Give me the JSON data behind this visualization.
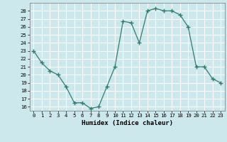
{
  "x": [
    0,
    1,
    2,
    3,
    4,
    5,
    6,
    7,
    8,
    9,
    10,
    11,
    12,
    13,
    14,
    15,
    16,
    17,
    18,
    19,
    20,
    21,
    22,
    23
  ],
  "y": [
    23,
    21.5,
    20.5,
    20,
    18.5,
    16.5,
    16.5,
    15.8,
    16,
    18.5,
    21,
    26.7,
    26.5,
    24,
    28,
    28.3,
    28,
    28,
    27.5,
    26,
    21,
    21,
    19.5,
    19
  ],
  "line_color": "#2e7d6e",
  "marker_color": "#2e7d6e",
  "bg_color": "#cce8ec",
  "grid_color": "#ffffff",
  "xlabel": "Humidex (Indice chaleur)",
  "xlim": [
    -0.5,
    23.5
  ],
  "ylim": [
    15.5,
    29
  ],
  "yticks": [
    16,
    17,
    18,
    19,
    20,
    21,
    22,
    23,
    24,
    25,
    26,
    27,
    28
  ],
  "xticks": [
    0,
    1,
    2,
    3,
    4,
    5,
    6,
    7,
    8,
    9,
    10,
    11,
    12,
    13,
    14,
    15,
    16,
    17,
    18,
    19,
    20,
    21,
    22,
    23
  ]
}
